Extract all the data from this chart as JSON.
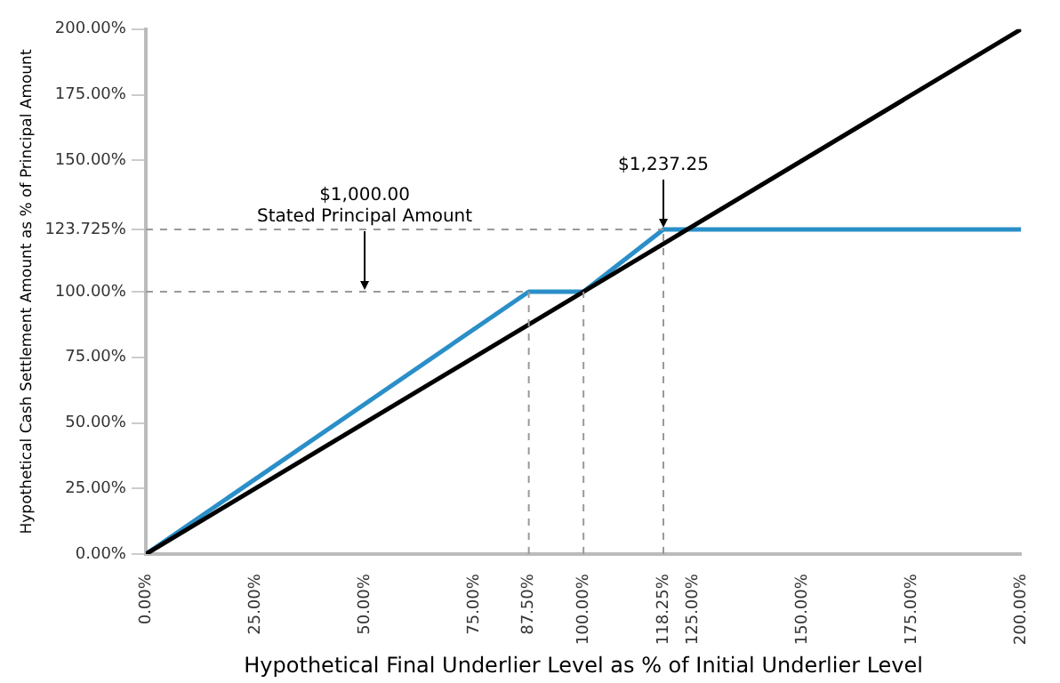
{
  "chart_data": {
    "type": "line",
    "xlabel": "Hypothetical Final Underlier Level as % of Initial Underlier Level",
    "ylabel": "Hypothetical Cash Settlement Amount as % of Principal Amount",
    "xlim": [
      0,
      200
    ],
    "xticks": [
      {
        "value": 0,
        "label": "0.00%"
      },
      {
        "value": 25,
        "label": "25.00%"
      },
      {
        "value": 50,
        "label": "50.00%"
      },
      {
        "value": 75,
        "label": "75.00%"
      },
      {
        "value": 87.5,
        "label": "87.50%"
      },
      {
        "value": 100,
        "label": "100.00%"
      },
      {
        "value": 118.25,
        "label": "118.25%"
      },
      {
        "value": 125,
        "label": "125.00%"
      },
      {
        "value": 150,
        "label": "150.00%"
      },
      {
        "value": 175,
        "label": "175.00%"
      },
      {
        "value": 200,
        "label": "200.00%"
      }
    ],
    "ylim": [
      0,
      200
    ],
    "yticks": [
      {
        "value": 0,
        "label": "0.00%"
      },
      {
        "value": 25,
        "label": "25.00%"
      },
      {
        "value": 50,
        "label": "50.00%"
      },
      {
        "value": 75,
        "label": "75.00%"
      },
      {
        "value": 100,
        "label": "100.00%"
      },
      {
        "value": 123.725,
        "label": "123.725%"
      },
      {
        "value": 150,
        "label": "150.00%"
      },
      {
        "value": 175,
        "label": "175.00%"
      },
      {
        "value": 200,
        "label": "200.00%"
      }
    ],
    "grid": false,
    "legend": false,
    "marker": "none",
    "series": [
      {
        "color": "#999999",
        "line_style": "dashed",
        "x": [
          0,
          87.5
        ],
        "values": [
          100,
          100
        ]
      },
      {
        "color": "#999999",
        "line_style": "dashed",
        "x": [
          0,
          118.25
        ],
        "values": [
          123.725,
          123.725
        ]
      },
      {
        "color": "#999999",
        "line_style": "dashed",
        "x": [
          87.5,
          87.5
        ],
        "values": [
          0,
          100
        ]
      },
      {
        "color": "#999999",
        "line_style": "dashed",
        "x": [
          100,
          100
        ],
        "values": [
          0,
          100
        ]
      },
      {
        "color": "#999999",
        "line_style": "dashed",
        "x": [
          118.25,
          118.25
        ],
        "values": [
          0,
          123.725
        ]
      },
      {
        "color": "#000000",
        "line_style": "solid",
        "x": [
          0,
          200
        ],
        "values": [
          0,
          200
        ]
      },
      {
        "color": "#2a8fc8",
        "line_style": "solid",
        "x": [
          0,
          87.5,
          100,
          118.25,
          200
        ],
        "values": [
          0,
          100,
          100,
          123.725,
          123.725
        ]
      }
    ],
    "annotations": [
      {
        "text": "$1,000.00\nStated Principal Amount",
        "x": 50,
        "y": 100
      },
      {
        "text": "$1,237.25",
        "x": 118.25,
        "y": 123.725
      }
    ]
  }
}
